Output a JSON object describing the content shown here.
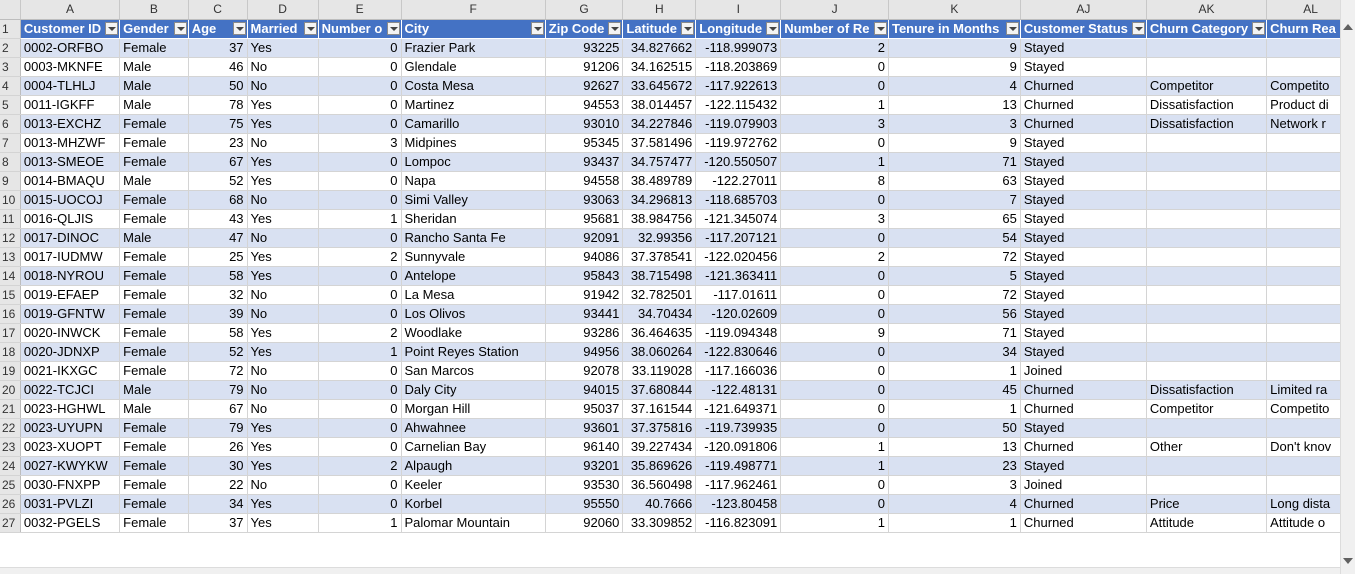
{
  "column_letters": [
    "A",
    "B",
    "C",
    "D",
    "E",
    "F",
    "G",
    "H",
    "I",
    "J",
    "K",
    "AJ",
    "AK",
    "AL"
  ],
  "headers": [
    "Customer ID",
    "Gender",
    "Age",
    "Married",
    "Number o",
    "City",
    "Zip Code",
    "Latitude",
    "Longitude",
    "Number of Re",
    "Tenure in Months",
    "Customer Status",
    "Churn Category",
    "Churn Rea"
  ],
  "first_row_number": "1",
  "rows": [
    [
      "2",
      "0002-ORFBO",
      "Female",
      "37",
      "Yes",
      "0",
      "Frazier Park",
      "93225",
      "34.827662",
      "-118.999073",
      "2",
      "9",
      "Stayed",
      "",
      ""
    ],
    [
      "3",
      "0003-MKNFE",
      "Male",
      "46",
      "No",
      "0",
      "Glendale",
      "91206",
      "34.162515",
      "-118.203869",
      "0",
      "9",
      "Stayed",
      "",
      ""
    ],
    [
      "4",
      "0004-TLHLJ",
      "Male",
      "50",
      "No",
      "0",
      "Costa Mesa",
      "92627",
      "33.645672",
      "-117.922613",
      "0",
      "4",
      "Churned",
      "Competitor",
      "Competito"
    ],
    [
      "5",
      "0011-IGKFF",
      "Male",
      "78",
      "Yes",
      "0",
      "Martinez",
      "94553",
      "38.014457",
      "-122.115432",
      "1",
      "13",
      "Churned",
      "Dissatisfaction",
      "Product di"
    ],
    [
      "6",
      "0013-EXCHZ",
      "Female",
      "75",
      "Yes",
      "0",
      "Camarillo",
      "93010",
      "34.227846",
      "-119.079903",
      "3",
      "3",
      "Churned",
      "Dissatisfaction",
      "Network r"
    ],
    [
      "7",
      "0013-MHZWF",
      "Female",
      "23",
      "No",
      "3",
      "Midpines",
      "95345",
      "37.581496",
      "-119.972762",
      "0",
      "9",
      "Stayed",
      "",
      ""
    ],
    [
      "8",
      "0013-SMEOE",
      "Female",
      "67",
      "Yes",
      "0",
      "Lompoc",
      "93437",
      "34.757477",
      "-120.550507",
      "1",
      "71",
      "Stayed",
      "",
      ""
    ],
    [
      "9",
      "0014-BMAQU",
      "Male",
      "52",
      "Yes",
      "0",
      "Napa",
      "94558",
      "38.489789",
      "-122.27011",
      "8",
      "63",
      "Stayed",
      "",
      ""
    ],
    [
      "10",
      "0015-UOCOJ",
      "Female",
      "68",
      "No",
      "0",
      "Simi Valley",
      "93063",
      "34.296813",
      "-118.685703",
      "0",
      "7",
      "Stayed",
      "",
      ""
    ],
    [
      "11",
      "0016-QLJIS",
      "Female",
      "43",
      "Yes",
      "1",
      "Sheridan",
      "95681",
      "38.984756",
      "-121.345074",
      "3",
      "65",
      "Stayed",
      "",
      ""
    ],
    [
      "12",
      "0017-DINOC",
      "Male",
      "47",
      "No",
      "0",
      "Rancho Santa Fe",
      "92091",
      "32.99356",
      "-117.207121",
      "0",
      "54",
      "Stayed",
      "",
      ""
    ],
    [
      "13",
      "0017-IUDMW",
      "Female",
      "25",
      "Yes",
      "2",
      "Sunnyvale",
      "94086",
      "37.378541",
      "-122.020456",
      "2",
      "72",
      "Stayed",
      "",
      ""
    ],
    [
      "14",
      "0018-NYROU",
      "Female",
      "58",
      "Yes",
      "0",
      "Antelope",
      "95843",
      "38.715498",
      "-121.363411",
      "0",
      "5",
      "Stayed",
      "",
      ""
    ],
    [
      "15",
      "0019-EFAEP",
      "Female",
      "32",
      "No",
      "0",
      "La Mesa",
      "91942",
      "32.782501",
      "-117.01611",
      "0",
      "72",
      "Stayed",
      "",
      ""
    ],
    [
      "16",
      "0019-GFNTW",
      "Female",
      "39",
      "No",
      "0",
      "Los Olivos",
      "93441",
      "34.70434",
      "-120.02609",
      "0",
      "56",
      "Stayed",
      "",
      ""
    ],
    [
      "17",
      "0020-INWCK",
      "Female",
      "58",
      "Yes",
      "2",
      "Woodlake",
      "93286",
      "36.464635",
      "-119.094348",
      "9",
      "71",
      "Stayed",
      "",
      ""
    ],
    [
      "18",
      "0020-JDNXP",
      "Female",
      "52",
      "Yes",
      "1",
      "Point Reyes Station",
      "94956",
      "38.060264",
      "-122.830646",
      "0",
      "34",
      "Stayed",
      "",
      ""
    ],
    [
      "19",
      "0021-IKXGC",
      "Female",
      "72",
      "No",
      "0",
      "San Marcos",
      "92078",
      "33.119028",
      "-117.166036",
      "0",
      "1",
      "Joined",
      "",
      ""
    ],
    [
      "20",
      "0022-TCJCI",
      "Male",
      "79",
      "No",
      "0",
      "Daly City",
      "94015",
      "37.680844",
      "-122.48131",
      "0",
      "45",
      "Churned",
      "Dissatisfaction",
      "Limited ra"
    ],
    [
      "21",
      "0023-HGHWL",
      "Male",
      "67",
      "No",
      "0",
      "Morgan Hill",
      "95037",
      "37.161544",
      "-121.649371",
      "0",
      "1",
      "Churned",
      "Competitor",
      "Competito"
    ],
    [
      "22",
      "0023-UYUPN",
      "Female",
      "79",
      "Yes",
      "0",
      "Ahwahnee",
      "93601",
      "37.375816",
      "-119.739935",
      "0",
      "50",
      "Stayed",
      "",
      ""
    ],
    [
      "23",
      "0023-XUOPT",
      "Female",
      "26",
      "Yes",
      "0",
      "Carnelian Bay",
      "96140",
      "39.227434",
      "-120.091806",
      "1",
      "13",
      "Churned",
      "Other",
      "Don't knov"
    ],
    [
      "24",
      "0027-KWYKW",
      "Female",
      "30",
      "Yes",
      "2",
      "Alpaugh",
      "93201",
      "35.869626",
      "-119.498771",
      "1",
      "23",
      "Stayed",
      "",
      ""
    ],
    [
      "25",
      "0030-FNXPP",
      "Female",
      "22",
      "No",
      "0",
      "Keeler",
      "93530",
      "36.560498",
      "-117.962461",
      "0",
      "3",
      "Joined",
      "",
      ""
    ],
    [
      "26",
      "0031-PVLZI",
      "Female",
      "34",
      "Yes",
      "0",
      "Korbel",
      "95550",
      "40.7666",
      "-123.80458",
      "0",
      "4",
      "Churned",
      "Price",
      "Long dista"
    ],
    [
      "27",
      "0032-PGELS",
      "Female",
      "37",
      "Yes",
      "1",
      "Palomar Mountain",
      "92060",
      "33.309852",
      "-116.823091",
      "1",
      "1",
      "Churned",
      "Attitude",
      "Attitude o"
    ]
  ]
}
